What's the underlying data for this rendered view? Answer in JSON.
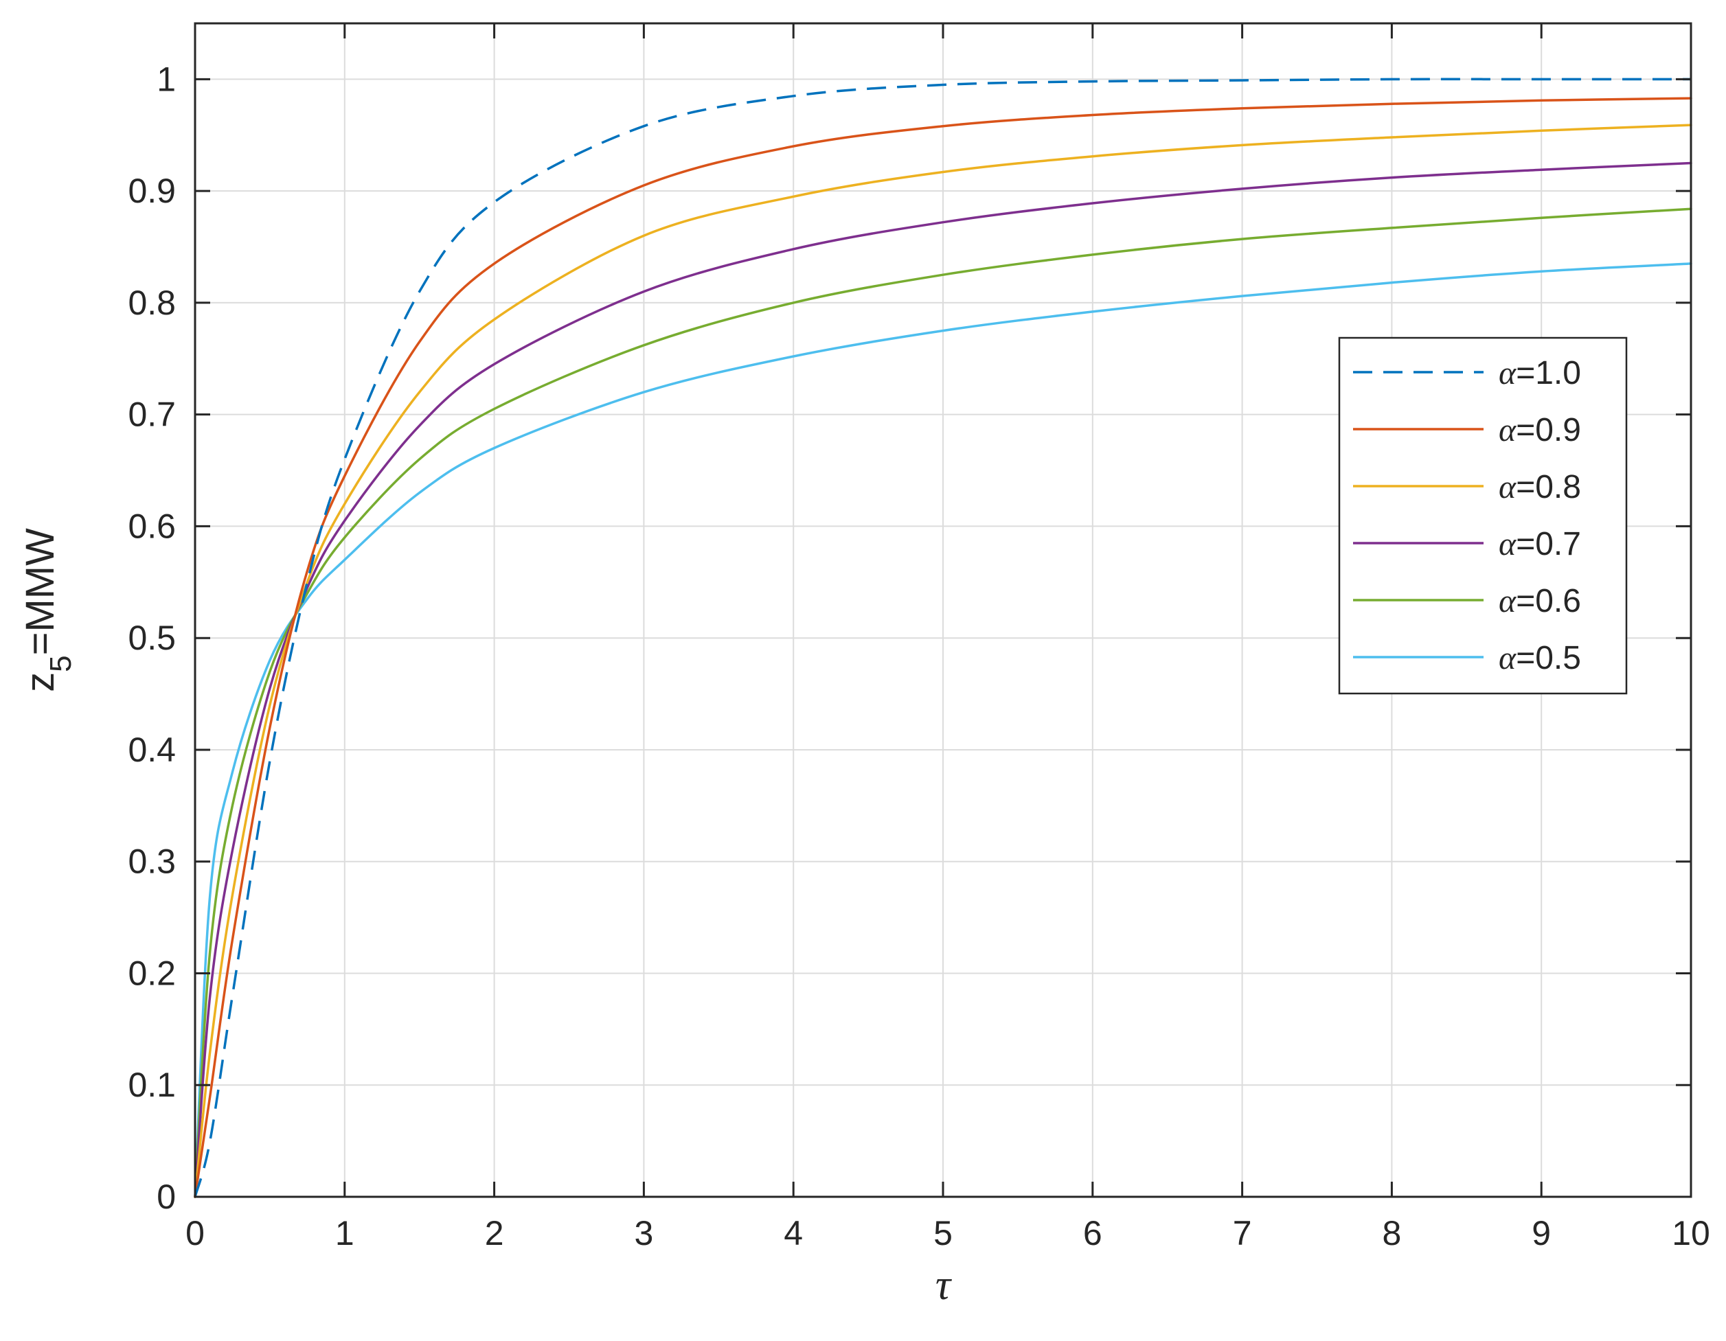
{
  "chart_data": {
    "type": "line",
    "title": "",
    "xlabel": "τ",
    "ylabel": {
      "base": "z",
      "sub": "5",
      "rest": "=MMW"
    },
    "xlim": [
      0,
      10
    ],
    "ylim": [
      0,
      1.05
    ],
    "xticks": [
      0,
      1,
      2,
      3,
      4,
      5,
      6,
      7,
      8,
      9,
      10
    ],
    "xtick_labels": [
      "0",
      "1",
      "2",
      "3",
      "4",
      "5",
      "6",
      "7",
      "8",
      "9",
      "10"
    ],
    "yticks": [
      0,
      0.1,
      0.2,
      0.3,
      0.4,
      0.5,
      0.6,
      0.7,
      0.8,
      0.9,
      1
    ],
    "ytick_labels": [
      "0",
      "0.1",
      "0.2",
      "0.3",
      "0.4",
      "0.5",
      "0.6",
      "0.7",
      "0.8",
      "0.9",
      "1"
    ],
    "grid": true,
    "legend_position": "right, upper-middle",
    "x": [
      0,
      0.1,
      0.25,
      0.5,
      0.75,
      1,
      1.5,
      2,
      3,
      4,
      5,
      6,
      7,
      8,
      9,
      10
    ],
    "series": [
      {
        "name": "α=1.0",
        "alpha_symbol": "α",
        "value_label": "=1.0",
        "color": "#0072BD",
        "dash": "dashed",
        "values": [
          0,
          0.05,
          0.18,
          0.39,
          0.55,
          0.66,
          0.81,
          0.89,
          0.958,
          0.985,
          0.995,
          0.998,
          0.999,
          1.0,
          1.0,
          1.0
        ]
      },
      {
        "name": "α=0.9",
        "alpha_symbol": "α",
        "value_label": "=0.9",
        "color": "#D95319",
        "dash": "solid",
        "values": [
          0,
          0.09,
          0.23,
          0.42,
          0.56,
          0.645,
          0.765,
          0.835,
          0.905,
          0.94,
          0.958,
          0.968,
          0.974,
          0.978,
          0.981,
          0.983
        ]
      },
      {
        "name": "α=0.8",
        "alpha_symbol": "α",
        "value_label": "=0.8",
        "color": "#EDB120",
        "dash": "solid",
        "values": [
          0,
          0.13,
          0.27,
          0.44,
          0.55,
          0.62,
          0.72,
          0.785,
          0.86,
          0.895,
          0.917,
          0.931,
          0.941,
          0.948,
          0.954,
          0.959
        ]
      },
      {
        "name": "α=0.7",
        "alpha_symbol": "α",
        "value_label": "=0.7",
        "color": "#7E2F8E",
        "dash": "solid",
        "values": [
          0,
          0.18,
          0.31,
          0.455,
          0.545,
          0.605,
          0.69,
          0.745,
          0.81,
          0.848,
          0.872,
          0.889,
          0.902,
          0.912,
          0.919,
          0.925
        ]
      },
      {
        "name": "α=0.6",
        "alpha_symbol": "α",
        "value_label": "=0.6",
        "color": "#77AC30",
        "dash": "solid",
        "values": [
          0,
          0.22,
          0.35,
          0.47,
          0.54,
          0.59,
          0.66,
          0.705,
          0.762,
          0.8,
          0.825,
          0.843,
          0.857,
          0.867,
          0.876,
          0.884
        ]
      },
      {
        "name": "α=0.5",
        "alpha_symbol": "α",
        "value_label": "=0.5",
        "color": "#4DBEEE",
        "dash": "solid",
        "values": [
          0,
          0.27,
          0.38,
          0.48,
          0.535,
          0.57,
          0.63,
          0.67,
          0.72,
          0.752,
          0.775,
          0.792,
          0.806,
          0.818,
          0.828,
          0.835
        ]
      }
    ]
  }
}
